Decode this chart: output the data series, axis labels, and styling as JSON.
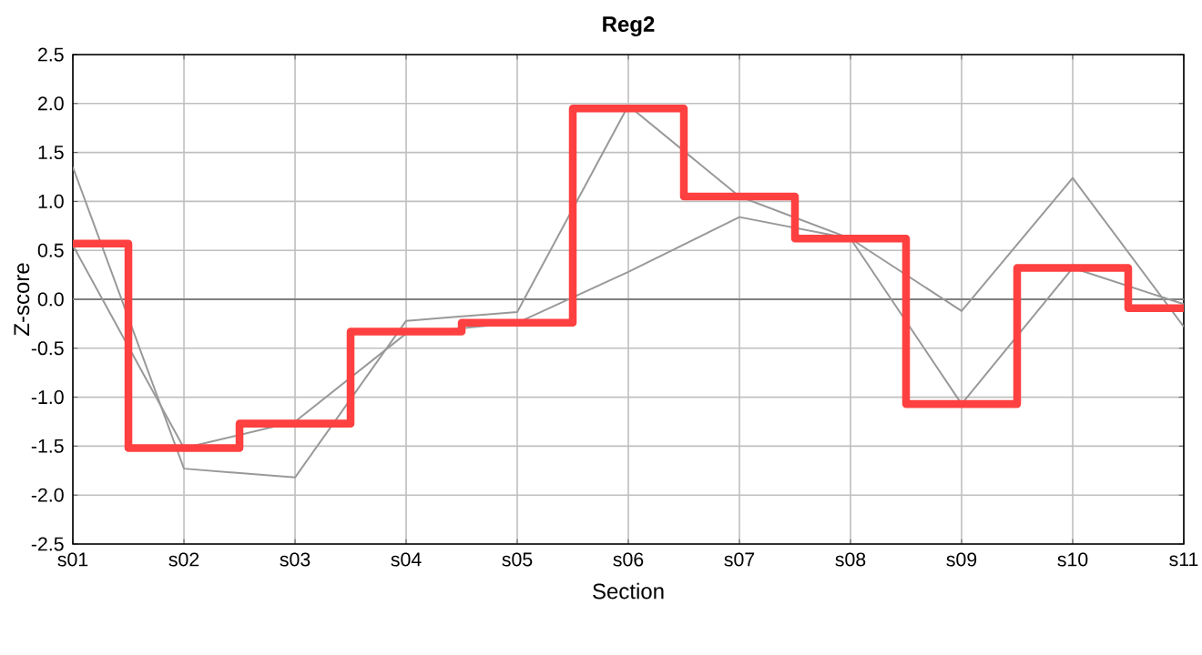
{
  "chart_data": {
    "type": "line",
    "title": "Reg2",
    "xlabel": "Section",
    "ylabel": "Z-score",
    "categories": [
      "s01",
      "s02",
      "s03",
      "s04",
      "s05",
      "s06",
      "s07",
      "s08",
      "s09",
      "s10",
      "s11"
    ],
    "series": [
      {
        "color": "#999999",
        "values": [
          1.35,
          -1.73,
          -1.82,
          -0.22,
          -0.13,
          1.98,
          1.05,
          0.62,
          -0.12,
          1.24,
          -0.28
        ]
      },
      {
        "color": "#999999",
        "values": [
          0.55,
          -1.52,
          -1.25,
          -0.35,
          -0.24,
          0.28,
          0.84,
          0.62,
          -1.07,
          0.32,
          -0.05
        ]
      },
      {
        "color": "#ff4040",
        "type": "step",
        "values": [
          0.57,
          -1.52,
          -1.27,
          -0.33,
          -0.24,
          1.95,
          1.05,
          0.62,
          -1.07,
          0.32,
          -0.09
        ]
      }
    ],
    "ylim": [
      -2.5,
      2.5
    ],
    "yticks": [
      -2.5,
      {
        "value": -2.0,
        "label": "-2.0"
      },
      -1.5,
      {
        "value": -1.0,
        "label": "-1.0"
      },
      -0.5,
      {
        "value": 0.0,
        "label": "0.0"
      },
      0.5,
      {
        "value": 1.0,
        "label": "1.0"
      },
      1.5,
      {
        "value": 2.0,
        "label": "2.0"
      },
      2.5
    ],
    "ref_lines": [
      {
        "axis": "y",
        "value": 0,
        "color": "#808080"
      }
    ],
    "grid": true,
    "marker": "none"
  }
}
